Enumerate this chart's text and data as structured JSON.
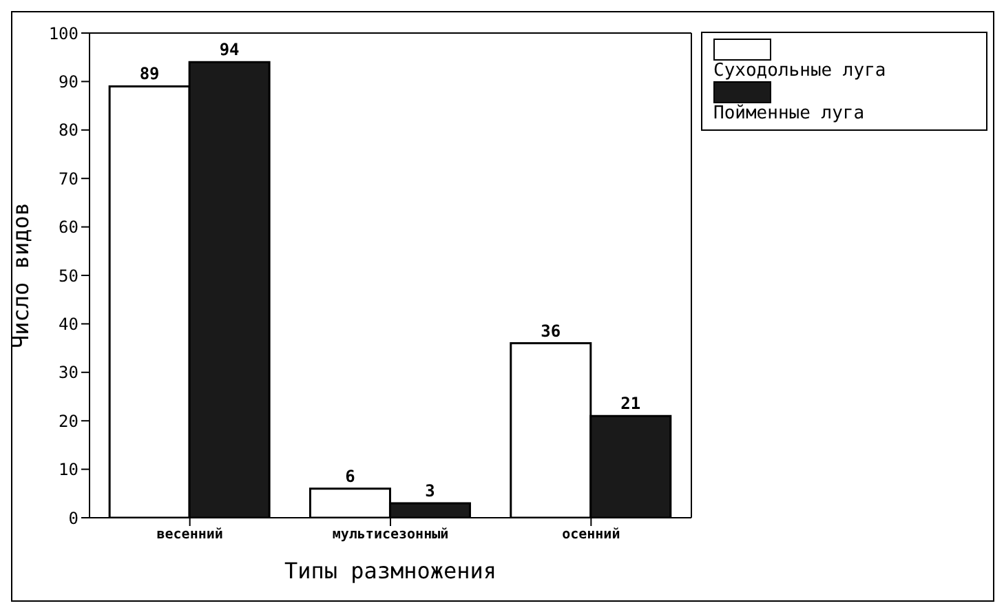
{
  "chart_data": {
    "type": "bar",
    "xlabel": "Типы размножения",
    "ylabel": "Число видов",
    "categories": [
      "весенний",
      "мультисезонный",
      "осенний"
    ],
    "series": [
      {
        "name": "Суходольные луга",
        "color": "#ffffff",
        "values": [
          89,
          6,
          36
        ]
      },
      {
        "name": "Пойменные луга",
        "color": "#1a1a1a",
        "values": [
          94,
          3,
          21
        ]
      }
    ],
    "ylim": [
      0,
      100
    ],
    "yticks": [
      0,
      10,
      20,
      30,
      40,
      50,
      60,
      70,
      80,
      90,
      100
    ],
    "data_labels": true,
    "legend": "top right",
    "grid": false
  }
}
